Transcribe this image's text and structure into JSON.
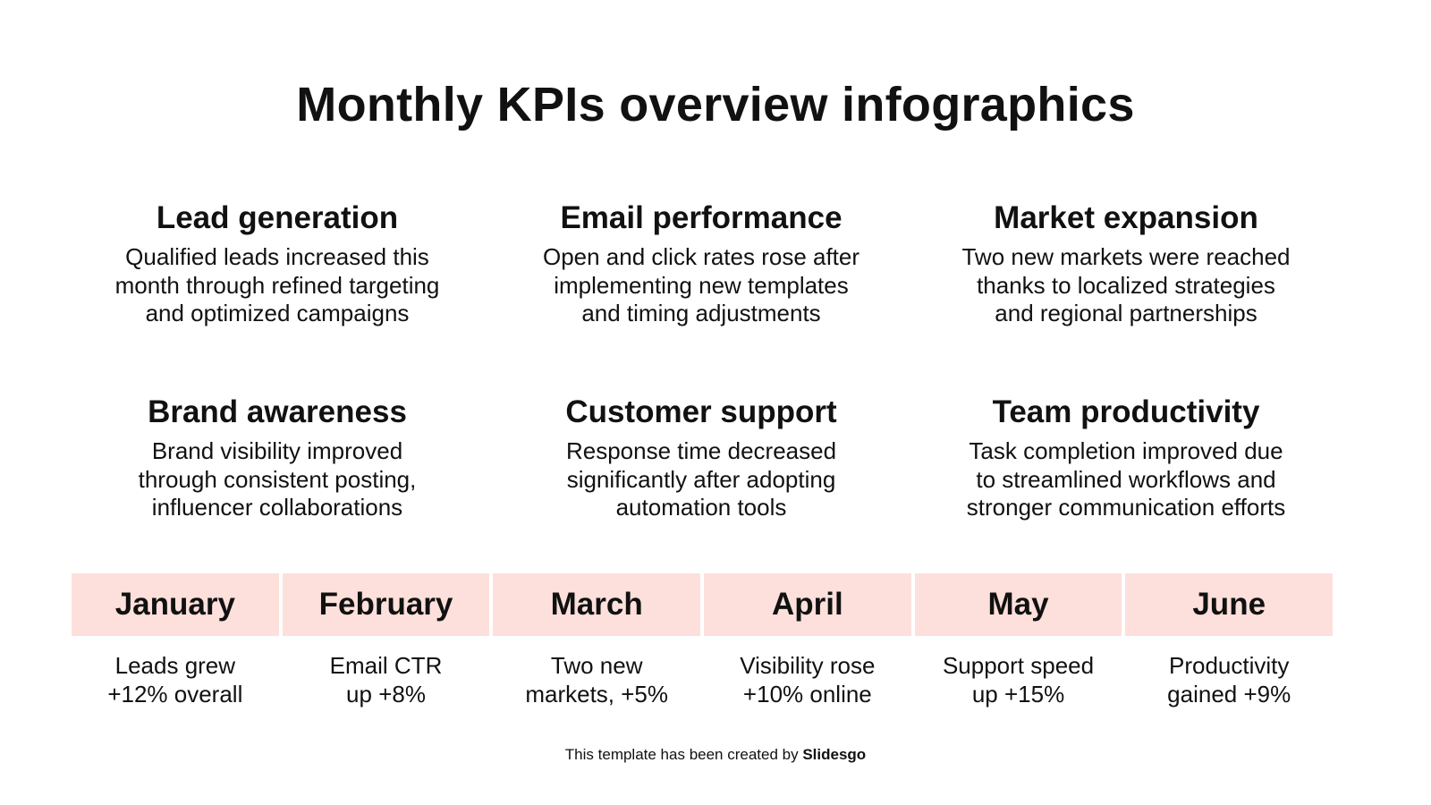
{
  "title": "Monthly KPIs overview infographics",
  "kpis": [
    {
      "heading": "Lead generation",
      "lines": [
        "Qualified leads increased this",
        "month through refined targeting",
        "and optimized campaigns"
      ]
    },
    {
      "heading": "Email performance",
      "lines": [
        "Open and click rates rose after",
        "implementing new templates",
        "and timing adjustments"
      ]
    },
    {
      "heading": "Market expansion",
      "lines": [
        "Two new markets were reached",
        "thanks to localized strategies",
        "and regional partnerships"
      ]
    },
    {
      "heading": "Brand awareness",
      "lines": [
        "Brand visibility improved",
        "through consistent posting,",
        "influencer collaborations"
      ]
    },
    {
      "heading": "Customer support",
      "lines": [
        "Response time decreased",
        "significantly after adopting",
        "automation tools"
      ]
    },
    {
      "heading": "Team productivity",
      "lines": [
        "Task completion improved due",
        "to streamlined workflows and",
        "stronger communication efforts"
      ]
    }
  ],
  "months": [
    {
      "name": "January",
      "lines": [
        "Leads grew",
        "+12% overall"
      ]
    },
    {
      "name": "February",
      "lines": [
        "Email CTR",
        "up +8%"
      ]
    },
    {
      "name": "March",
      "lines": [
        "Two new",
        "markets, +5%"
      ]
    },
    {
      "name": "April",
      "lines": [
        "Visibility rose",
        "+10% online"
      ]
    },
    {
      "name": "May",
      "lines": [
        "Support speed",
        "up +15%"
      ]
    },
    {
      "name": "June",
      "lines": [
        "Productivity",
        "gained +9%"
      ]
    }
  ],
  "footer": {
    "prefix": "This template has been created by ",
    "brand": "Slidesgo"
  },
  "colors": {
    "month_bg": "#fde0db"
  }
}
